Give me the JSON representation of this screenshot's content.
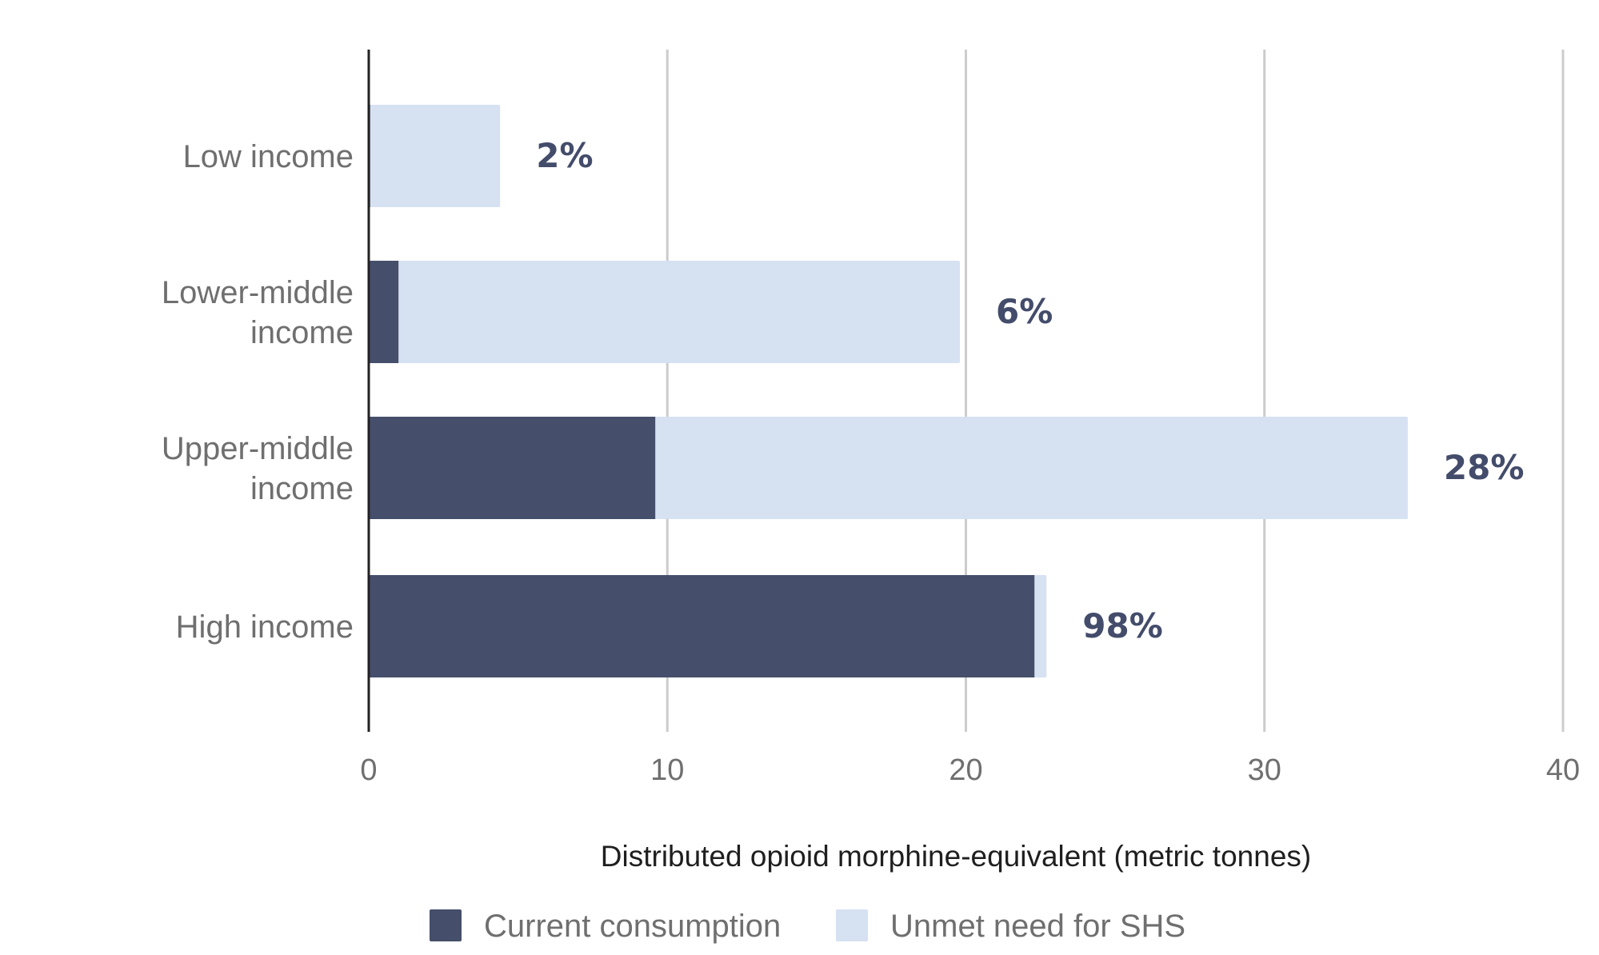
{
  "chart_data": {
    "type": "bar",
    "orientation": "horizontal",
    "stacked": true,
    "categories": [
      [
        "Low income"
      ],
      [
        "Lower-middle",
        "income"
      ],
      [
        "Upper-middle",
        "income"
      ],
      [
        "High income"
      ]
    ],
    "series": [
      {
        "name": "Current consumption",
        "values": [
          0.05,
          1.0,
          9.6,
          22.3
        ]
      },
      {
        "name": "Unmet need for SHS",
        "values": [
          4.35,
          18.8,
          25.2,
          0.4
        ]
      }
    ],
    "data_labels": [
      "2%",
      "6%",
      "28%",
      "98%"
    ],
    "xlabel": "Distributed opioid morphine-equivalent (metric tonnes)",
    "ylabel": "",
    "xlim": [
      0,
      40
    ],
    "xticks": [
      0,
      10,
      20,
      30,
      40
    ],
    "grid": "vertical",
    "legend_position": "bottom",
    "colors": {
      "current": "#454f6b",
      "unmet": "#d6e1f2",
      "grid": "#cccccc",
      "axis": "#222222",
      "label": "#434c6a"
    }
  }
}
